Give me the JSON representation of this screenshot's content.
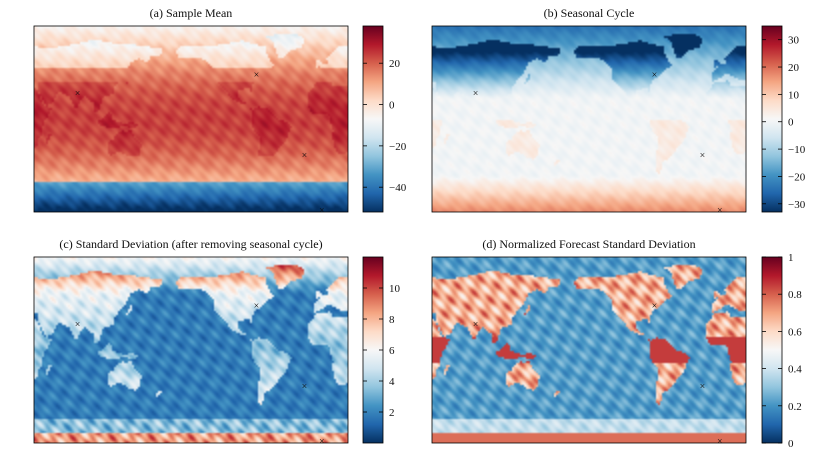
{
  "chart_data": [
    {
      "type": "heatmap",
      "title": "(a) Sample Mean",
      "colorbar": {
        "range": [
          -52,
          38
        ],
        "ticks": [
          20,
          0,
          -20,
          -40
        ],
        "tick_labels": [
          "20",
          "0",
          "−20",
          "−40"
        ]
      },
      "field": "mean",
      "markers": [
        {
          "lon": 80,
          "lat": 25
        },
        {
          "lon": -75,
          "lat": 43
        },
        {
          "lon": -20,
          "lat": -35
        },
        {
          "lon": 0,
          "lat": -88
        }
      ]
    },
    {
      "type": "heatmap",
      "title": "(b) Seasonal Cycle",
      "colorbar": {
        "range": [
          -33,
          35
        ],
        "ticks": [
          30,
          20,
          10,
          0,
          -10,
          -20,
          -30
        ],
        "tick_labels": [
          "30",
          "20",
          "10",
          "0",
          "−10",
          "−20",
          "−30"
        ]
      },
      "field": "seasonal",
      "markers": [
        {
          "lon": 80,
          "lat": 25
        },
        {
          "lon": -75,
          "lat": 43
        },
        {
          "lon": -20,
          "lat": -35
        },
        {
          "lon": 0,
          "lat": -88
        }
      ]
    },
    {
      "type": "heatmap",
      "title": "(c) Standard Deviation (after removing seasonal cycle)",
      "colorbar": {
        "range": [
          0,
          12
        ],
        "ticks": [
          10,
          8,
          6,
          4,
          2
        ],
        "tick_labels": [
          "10",
          "8",
          "6",
          "4",
          "2"
        ]
      },
      "field": "std",
      "markers": [
        {
          "lon": 80,
          "lat": 25
        },
        {
          "lon": -75,
          "lat": 43
        },
        {
          "lon": -20,
          "lat": -35
        },
        {
          "lon": 0,
          "lat": -88
        }
      ]
    },
    {
      "type": "heatmap",
      "title": "(d) Normalized Forecast Standard Deviation",
      "colorbar": {
        "range": [
          0,
          1
        ],
        "ticks": [
          1,
          0.8,
          0.6,
          0.4,
          0.2,
          0
        ],
        "tick_labels": [
          "1",
          "0.8",
          "0.6",
          "0.4",
          "0.2",
          "0"
        ]
      },
      "field": "normstd",
      "markers": [
        {
          "lon": 80,
          "lat": 25
        },
        {
          "lon": -75,
          "lat": 43
        },
        {
          "lon": -20,
          "lat": -35
        },
        {
          "lon": 0,
          "lat": -88
        }
      ]
    }
  ],
  "colormap": {
    "name": "RdBu_r",
    "stops": [
      "#053061",
      "#2166ac",
      "#4393c3",
      "#92c5de",
      "#d1e5f0",
      "#f7f7f7",
      "#fddbc7",
      "#f4a582",
      "#d6604d",
      "#b2182b",
      "#67001f"
    ]
  },
  "marker_symbol": "×"
}
